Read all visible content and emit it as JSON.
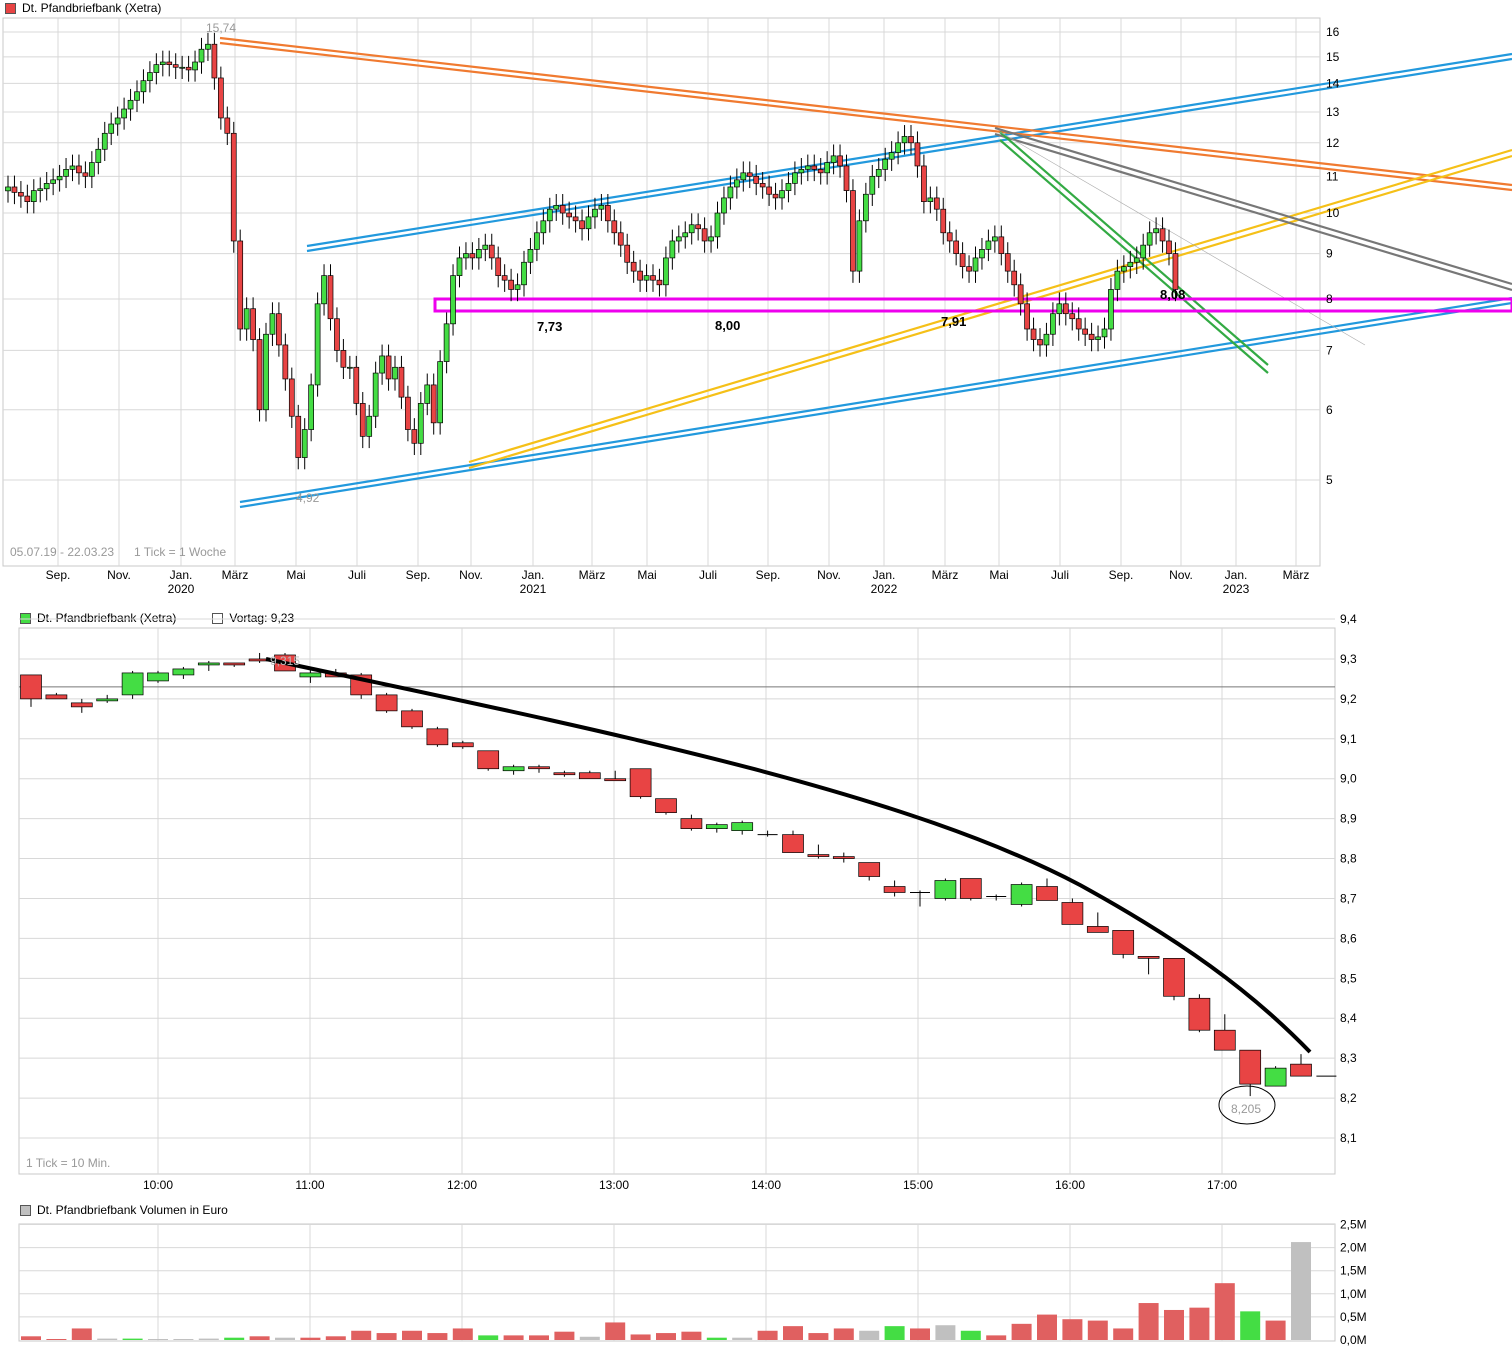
{
  "colors": {
    "up": "#44dd44",
    "down": "#e84444",
    "volume_neutral": "#c0c0c0",
    "grid": "#d8d8d8",
    "channel": "#2299dd",
    "resistance_orange": "#f07a30",
    "trend_yellow": "#f5c018",
    "trend_green": "#33aa44",
    "trend_gray": "#777777",
    "support_magenta": "#ee00ee"
  },
  "chart1": {
    "legend": "Dt. Pfandbriefbank (Xetra)",
    "footer_range": "05.07.19 - 22.03.23",
    "footer_tick": "1 Tick = 1 Woche"
  },
  "chart2": {
    "legend": "Dt. Pfandbriefbank (Xetra)",
    "prev_legend": "Vortag: 9,23",
    "footer_tick": "1 Tick = 10 Min."
  },
  "chart3": {
    "legend": "Dt. Pfandbriefbank Volumen in Euro"
  },
  "chart_data": [
    {
      "type": "candlestick",
      "title": "Dt. Pfandbriefbank (Xetra)",
      "period": "05.07.19 - 22.03.23",
      "interval": "1 Woche",
      "y_ticks": [
        "5",
        "6",
        "7",
        "8",
        "9",
        "10",
        "11",
        "12",
        "13",
        "14",
        "15",
        "16"
      ],
      "x_labels": [
        {
          "t": "Sep.",
          "y2": ""
        },
        {
          "t": "Nov.",
          "y2": ""
        },
        {
          "t": "Jan.",
          "y2": "2020"
        },
        {
          "t": "März",
          "y2": ""
        },
        {
          "t": "Mai",
          "y2": ""
        },
        {
          "t": "Juli",
          "y2": ""
        },
        {
          "t": "Sep.",
          "y2": ""
        },
        {
          "t": "Nov.",
          "y2": ""
        },
        {
          "t": "Jan.",
          "y2": "2021"
        },
        {
          "t": "März",
          "y2": ""
        },
        {
          "t": "Mai",
          "y2": ""
        },
        {
          "t": "Juli",
          "y2": ""
        },
        {
          "t": "Sep.",
          "y2": ""
        },
        {
          "t": "Nov.",
          "y2": ""
        },
        {
          "t": "Jan.",
          "y2": "2022"
        },
        {
          "t": "März",
          "y2": ""
        },
        {
          "t": "Mai",
          "y2": ""
        },
        {
          "t": "Juli",
          "y2": ""
        },
        {
          "t": "Sep.",
          "y2": ""
        },
        {
          "t": "Nov.",
          "y2": ""
        },
        {
          "t": "Jan.",
          "y2": "2023"
        },
        {
          "t": "März",
          "y2": ""
        }
      ],
      "annotations": [
        "15,74",
        "4,92",
        "7,73",
        "8,00",
        "7,91",
        "8,08"
      ],
      "closes": [
        10.7,
        10.55,
        10.45,
        10.3,
        10.6,
        10.65,
        10.8,
        10.9,
        11.0,
        11.2,
        11.3,
        11.1,
        11.0,
        11.4,
        11.8,
        12.3,
        12.6,
        12.8,
        13.1,
        13.4,
        13.7,
        14.1,
        14.4,
        14.7,
        14.8,
        14.7,
        14.6,
        14.6,
        14.5,
        14.8,
        15.3,
        15.5,
        14.2,
        12.8,
        12.3,
        9.3,
        7.4,
        7.8,
        7.2,
        6.0,
        7.3,
        7.7,
        7.1,
        6.5,
        5.9,
        5.3,
        5.7,
        6.4,
        7.9,
        8.5,
        7.6,
        7.0,
        6.7,
        6.7,
        6.1,
        5.6,
        5.9,
        6.6,
        6.9,
        6.5,
        6.7,
        6.2,
        5.7,
        5.5,
        6.1,
        6.4,
        5.8,
        6.8,
        7.5,
        8.5,
        8.9,
        9.0,
        8.9,
        9.1,
        9.2,
        8.9,
        8.5,
        8.4,
        8.2,
        8.3,
        8.8,
        9.1,
        9.5,
        9.8,
        10.1,
        10.2,
        10.0,
        9.9,
        9.8,
        9.6,
        9.9,
        10.1,
        10.2,
        9.8,
        9.5,
        9.2,
        8.8,
        8.6,
        8.4,
        8.5,
        8.4,
        8.3,
        8.9,
        9.3,
        9.4,
        9.5,
        9.7,
        9.6,
        9.3,
        9.4,
        10.0,
        10.4,
        10.7,
        10.9,
        11.1,
        11.0,
        10.8,
        10.7,
        10.5,
        10.4,
        10.6,
        10.8,
        11.1,
        11.2,
        11.3,
        11.2,
        11.1,
        11.4,
        11.6,
        11.3,
        10.6,
        8.6,
        9.8,
        10.5,
        11.0,
        11.2,
        11.5,
        11.7,
        12.0,
        12.2,
        12.0,
        11.3,
        10.3,
        10.4,
        10.1,
        9.5,
        9.3,
        9.0,
        8.7,
        8.6,
        8.9,
        9.1,
        9.3,
        9.4,
        9.0,
        8.6,
        8.3,
        7.9,
        7.4,
        7.2,
        7.1,
        7.3,
        7.7,
        7.9,
        7.7,
        7.6,
        7.4,
        7.3,
        7.2,
        7.25,
        7.4,
        8.2,
        8.6,
        8.7,
        8.8,
        8.9,
        9.2,
        9.5,
        9.6,
        9.3,
        9.0,
        8.2
      ]
    },
    {
      "type": "candlestick",
      "title": "Dt. Pfandbriefbank (Xetra)",
      "interval": "10 Min.",
      "previous_close": 9.23,
      "y_ticks": [
        "8,1",
        "8,2",
        "8,3",
        "8,4",
        "8,5",
        "8,6",
        "8,7",
        "8,8",
        "8,9",
        "9,0",
        "9,1",
        "9,2",
        "9,3",
        "9,4"
      ],
      "x_labels": [
        "10:00",
        "11:00",
        "12:00",
        "13:00",
        "14:00",
        "15:00",
        "16:00",
        "17:00"
      ],
      "high_label": "9,315",
      "low_label": "8,205",
      "candles": [
        {
          "o": 9.26,
          "h": 9.26,
          "l": 9.18,
          "c": 9.2
        },
        {
          "o": 9.21,
          "h": 9.215,
          "l": 9.2,
          "c": 9.2
        },
        {
          "o": 9.19,
          "h": 9.2,
          "l": 9.165,
          "c": 9.18
        },
        {
          "o": 9.195,
          "h": 9.21,
          "l": 9.19,
          "c": 9.2
        },
        {
          "o": 9.21,
          "h": 9.27,
          "l": 9.2,
          "c": 9.265
        },
        {
          "o": 9.245,
          "h": 9.27,
          "l": 9.24,
          "c": 9.265
        },
        {
          "o": 9.26,
          "h": 9.28,
          "l": 9.25,
          "c": 9.275
        },
        {
          "o": 9.285,
          "h": 9.295,
          "l": 9.27,
          "c": 9.29
        },
        {
          "o": 9.29,
          "h": 9.29,
          "l": 9.28,
          "c": 9.285
        },
        {
          "o": 9.3,
          "h": 9.315,
          "l": 9.29,
          "c": 9.295
        },
        {
          "o": 9.31,
          "h": 9.315,
          "l": 9.27,
          "c": 9.27
        },
        {
          "o": 9.255,
          "h": 9.275,
          "l": 9.24,
          "c": 9.265
        },
        {
          "o": 9.265,
          "h": 9.275,
          "l": 9.255,
          "c": 9.255
        },
        {
          "o": 9.26,
          "h": 9.265,
          "l": 9.2,
          "c": 9.21
        },
        {
          "o": 9.21,
          "h": 9.215,
          "l": 9.165,
          "c": 9.17
        },
        {
          "o": 9.17,
          "h": 9.175,
          "l": 9.125,
          "c": 9.13
        },
        {
          "o": 9.125,
          "h": 9.13,
          "l": 9.08,
          "c": 9.085
        },
        {
          "o": 9.09,
          "h": 9.095,
          "l": 9.075,
          "c": 9.08
        },
        {
          "o": 9.07,
          "h": 9.07,
          "l": 9.02,
          "c": 9.025
        },
        {
          "o": 9.02,
          "h": 9.035,
          "l": 9.01,
          "c": 9.03
        },
        {
          "o": 9.03,
          "h": 9.035,
          "l": 9.015,
          "c": 9.025
        },
        {
          "o": 9.015,
          "h": 9.02,
          "l": 9.005,
          "c": 9.01
        },
        {
          "o": 9.015,
          "h": 9.02,
          "l": 9.0,
          "c": 9.0
        },
        {
          "o": 9.0,
          "h": 9.02,
          "l": 8.995,
          "c": 8.995
        },
        {
          "o": 9.025,
          "h": 9.025,
          "l": 8.95,
          "c": 8.955
        },
        {
          "o": 8.95,
          "h": 8.95,
          "l": 8.91,
          "c": 8.915
        },
        {
          "o": 8.9,
          "h": 8.91,
          "l": 8.87,
          "c": 8.875
        },
        {
          "o": 8.875,
          "h": 8.89,
          "l": 8.865,
          "c": 8.885
        },
        {
          "o": 8.87,
          "h": 8.895,
          "l": 8.86,
          "c": 8.89
        },
        {
          "o": 8.86,
          "h": 8.87,
          "l": 8.855,
          "c": 8.86
        },
        {
          "o": 8.86,
          "h": 8.87,
          "l": 8.815,
          "c": 8.815
        },
        {
          "o": 8.81,
          "h": 8.835,
          "l": 8.8,
          "c": 8.805
        },
        {
          "o": 8.805,
          "h": 8.815,
          "l": 8.79,
          "c": 8.8
        },
        {
          "o": 8.79,
          "h": 8.79,
          "l": 8.745,
          "c": 8.755
        },
        {
          "o": 8.73,
          "h": 8.745,
          "l": 8.705,
          "c": 8.715
        },
        {
          "o": 8.715,
          "h": 8.72,
          "l": 8.68,
          "c": 8.715
        },
        {
          "o": 8.7,
          "h": 8.75,
          "l": 8.695,
          "c": 8.745
        },
        {
          "o": 8.75,
          "h": 8.75,
          "l": 8.695,
          "c": 8.7
        },
        {
          "o": 8.705,
          "h": 8.71,
          "l": 8.695,
          "c": 8.705
        },
        {
          "o": 8.685,
          "h": 8.74,
          "l": 8.68,
          "c": 8.735
        },
        {
          "o": 8.73,
          "h": 8.75,
          "l": 8.695,
          "c": 8.695
        },
        {
          "o": 8.69,
          "h": 8.7,
          "l": 8.635,
          "c": 8.635
        },
        {
          "o": 8.63,
          "h": 8.665,
          "l": 8.615,
          "c": 8.615
        },
        {
          "o": 8.62,
          "h": 8.62,
          "l": 8.55,
          "c": 8.56
        },
        {
          "o": 8.555,
          "h": 8.555,
          "l": 8.51,
          "c": 8.55
        },
        {
          "o": 8.55,
          "h": 8.55,
          "l": 8.445,
          "c": 8.455
        },
        {
          "o": 8.45,
          "h": 8.46,
          "l": 8.365,
          "c": 8.37
        },
        {
          "o": 8.37,
          "h": 8.41,
          "l": 8.32,
          "c": 8.32
        },
        {
          "o": 8.32,
          "h": 8.32,
          "l": 8.205,
          "c": 8.235
        },
        {
          "o": 8.23,
          "h": 8.28,
          "l": 8.23,
          "c": 8.275
        },
        {
          "o": 8.285,
          "h": 8.31,
          "l": 8.255,
          "c": 8.255
        },
        {
          "o": 8.255,
          "h": 8.255,
          "l": 8.255,
          "c": 8.255
        }
      ]
    },
    {
      "type": "bar",
      "title": "Dt. Pfandbriefbank Volumen in Euro",
      "y_ticks": [
        "0,0M",
        "0,5M",
        "1,0M",
        "1,5M",
        "2,0M",
        "2,5M"
      ],
      "x_labels": [],
      "values_m": [
        0.08,
        0.02,
        0.25,
        0.03,
        0.03,
        0.02,
        0.02,
        0.03,
        0.05,
        0.08,
        0.05,
        0.05,
        0.08,
        0.2,
        0.15,
        0.2,
        0.15,
        0.25,
        0.1,
        0.1,
        0.1,
        0.18,
        0.07,
        0.38,
        0.12,
        0.15,
        0.18,
        0.05,
        0.05,
        0.2,
        0.3,
        0.15,
        0.25,
        0.2,
        0.3,
        0.25,
        0.32,
        0.2,
        0.1,
        0.35,
        0.55,
        0.45,
        0.42,
        0.25,
        0.8,
        0.65,
        0.7,
        1.23,
        0.62,
        0.42,
        2.12
      ],
      "bar_colors": [
        "down",
        "down",
        "down",
        "neutral",
        "up",
        "neutral",
        "neutral",
        "neutral",
        "up",
        "down",
        "neutral",
        "down",
        "down",
        "down",
        "down",
        "down",
        "down",
        "down",
        "up",
        "down",
        "down",
        "down",
        "neutral",
        "down",
        "down",
        "down",
        "down",
        "up",
        "neutral",
        "down",
        "down",
        "down",
        "down",
        "neutral",
        "up",
        "down",
        "neutral",
        "up",
        "down",
        "down",
        "down",
        "down",
        "down",
        "down",
        "down",
        "down",
        "down",
        "down",
        "up",
        "down",
        "neutral"
      ]
    }
  ]
}
